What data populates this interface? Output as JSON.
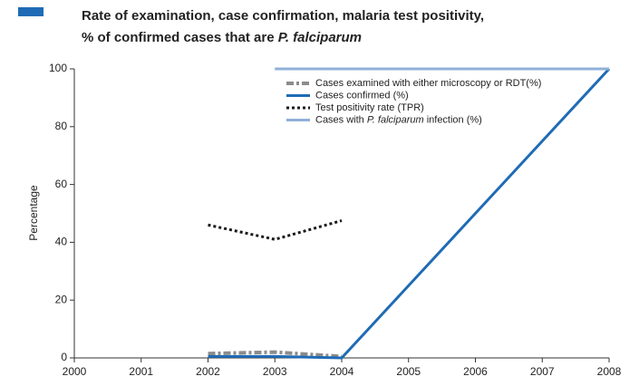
{
  "chart_data": {
    "type": "line",
    "title": [
      "Rate of examination, case confirmation, malaria test positivity,",
      "% of confirmed cases that are ",
      "P. falciparum"
    ],
    "y_label": "Percentage",
    "x": [
      2000,
      2001,
      2002,
      2003,
      2004,
      2005,
      2006,
      2007,
      2008
    ],
    "xlim": [
      2000,
      2008
    ],
    "xticks": [
      2000,
      2001,
      2002,
      2003,
      2004,
      2005,
      2006,
      2007,
      2008
    ],
    "ylim": [
      0,
      100
    ],
    "yticks": [
      0,
      20,
      40,
      60,
      80,
      100
    ],
    "grid": false,
    "legend": "top",
    "series": [
      {
        "name": [
          "Cases examined with either microscopy or RDT(%)"
        ],
        "color": "#8c8c8c",
        "style": "dashdot",
        "values": [
          null,
          null,
          1.5,
          2,
          0.5,
          null,
          null,
          null,
          null
        ]
      },
      {
        "name": [
          "Cases confirmed (%)"
        ],
        "color": "#1f6bb5",
        "style": "solid",
        "values": [
          null,
          null,
          0.5,
          0.5,
          0,
          25,
          50,
          75,
          100
        ]
      },
      {
        "name": [
          "Test positivity rate (TPR)"
        ],
        "color": "#1a1a1a",
        "style": "dotted",
        "values": [
          null,
          null,
          46,
          41,
          47.5,
          null,
          null,
          null,
          null
        ]
      },
      {
        "name": [
          "Cases with ",
          "P. falciparum",
          " infection (%)"
        ],
        "color": "#8fb0d8",
        "style": "solid",
        "values": [
          null,
          null,
          null,
          100,
          100,
          100,
          100,
          100,
          100
        ]
      }
    ]
  }
}
